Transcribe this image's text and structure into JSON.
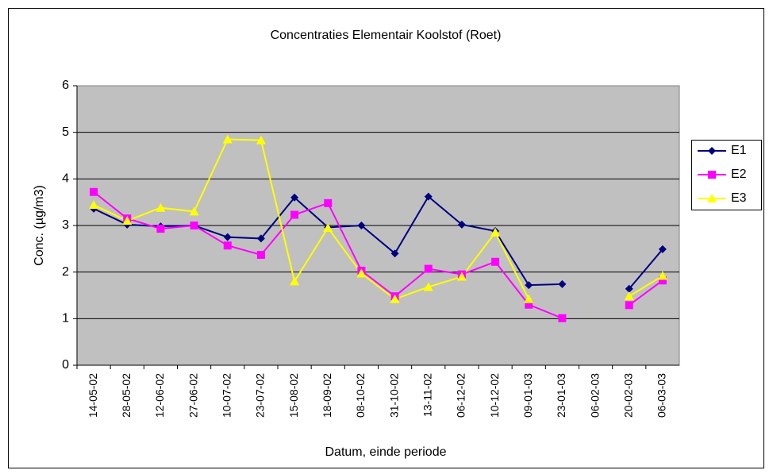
{
  "chart_data": {
    "type": "line",
    "title": "Concentraties Elementair Koolstof (Roet)",
    "xlabel": "Datum, einde periode",
    "ylabel": "Conc. (µg/m3)",
    "categories": [
      "14-05-02",
      "28-05-02",
      "12-06-02",
      "27-06-02",
      "10-07-02",
      "23-07-02",
      "15-08-02",
      "18-09-02",
      "08-10-02",
      "31-10-02",
      "13-11-02",
      "06-12-02",
      "10-12-02",
      "09-01-03",
      "23-01-03",
      "06-02-03",
      "20-02-03",
      "06-03-03"
    ],
    "series": [
      {
        "name": "E1",
        "color": "#000080",
        "marker": "diamond",
        "values": [
          3.36,
          3.02,
          2.98,
          3.0,
          2.75,
          2.72,
          3.6,
          2.96,
          3.0,
          2.4,
          3.62,
          3.02,
          2.88,
          1.72,
          1.74,
          null,
          1.64,
          2.49
        ]
      },
      {
        "name": "E2",
        "color": "#ff00ff",
        "marker": "square",
        "values": [
          3.72,
          3.15,
          2.93,
          3.0,
          2.57,
          2.37,
          3.23,
          3.48,
          2.03,
          1.48,
          2.07,
          1.95,
          2.22,
          1.3,
          1.01,
          null,
          1.29,
          1.82
        ]
      },
      {
        "name": "E3",
        "color": "#ffff00",
        "marker": "triangle",
        "values": [
          3.44,
          3.1,
          3.38,
          3.3,
          4.85,
          4.83,
          1.8,
          2.95,
          1.97,
          1.42,
          1.68,
          1.9,
          2.85,
          1.42,
          null,
          null,
          1.48,
          1.92
        ]
      }
    ],
    "ylim": [
      0,
      6
    ],
    "yticks": [
      0,
      1,
      2,
      3,
      4,
      5,
      6
    ],
    "grid": true,
    "legend": "right"
  }
}
